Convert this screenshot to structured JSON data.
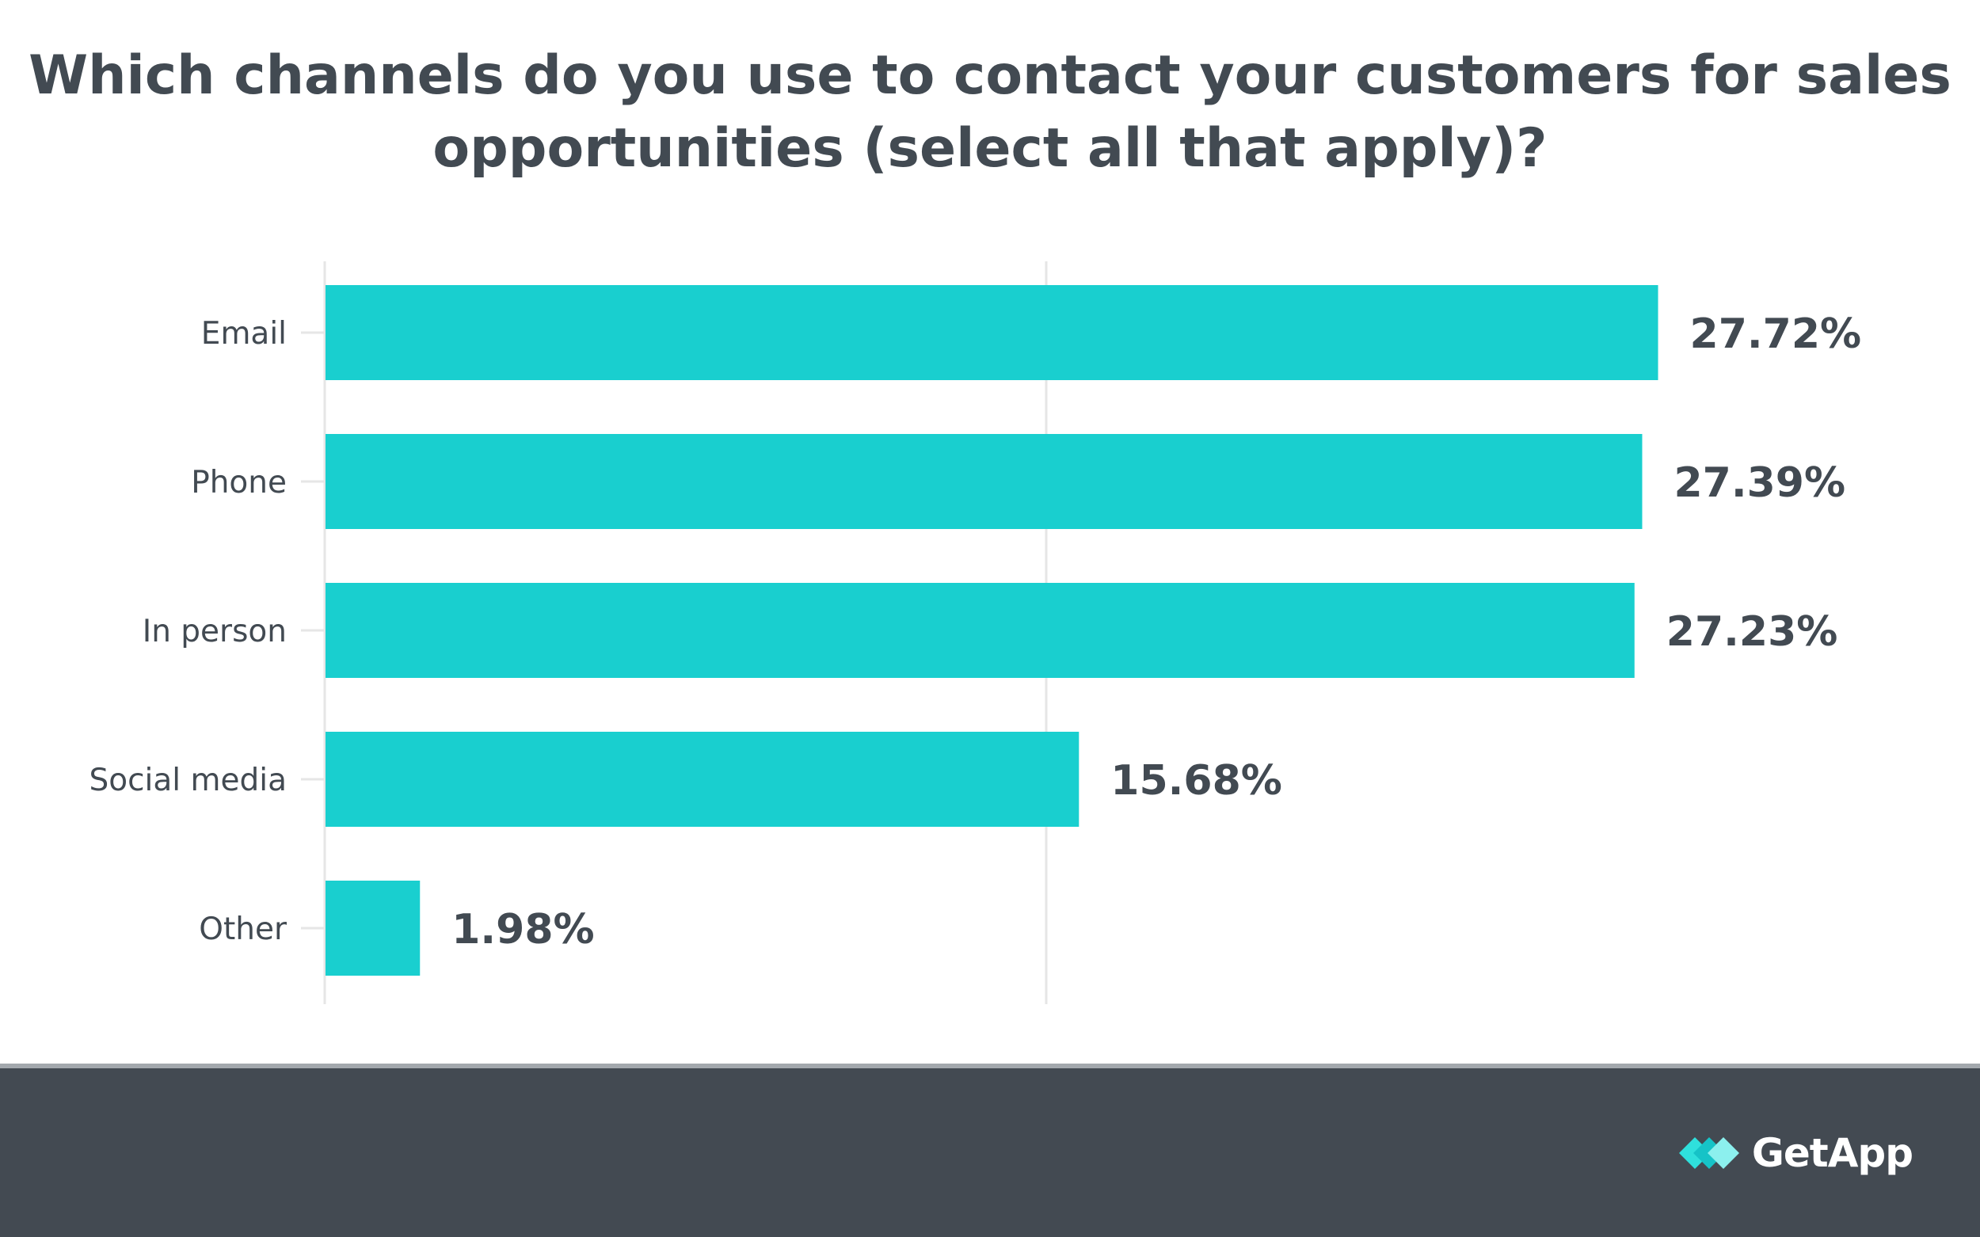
{
  "chart_data": {
    "type": "bar",
    "orientation": "horizontal",
    "title": "Which channels do you use to contact your customers for sales opportunities (select all that apply)?",
    "categories": [
      "Email",
      "Phone",
      "In person",
      "Social media",
      "Other"
    ],
    "values": [
      27.72,
      27.39,
      27.23,
      15.68,
      1.98
    ],
    "value_labels": [
      "27.72%",
      "27.39%",
      "27.23%",
      "15.68%",
      "1.98%"
    ],
    "xlim": [
      0,
      30
    ],
    "grid": true,
    "bar_color": "#19cfcf"
  },
  "footer": {
    "brand": "GetApp",
    "brand_icon": "getapp-logo-icon",
    "background_color": "#434a52"
  }
}
